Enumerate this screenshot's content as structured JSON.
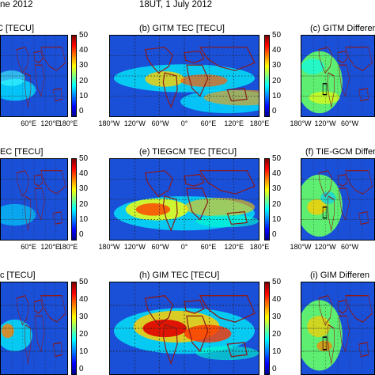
{
  "header": {
    "left": "ne 2012",
    "center": "18UT, 1 July 2012"
  },
  "colors": {
    "ocean": "#1a4fd8",
    "land_outline": "#8b1a1a",
    "dots": "#222222"
  },
  "chart_data": [
    {
      "type": "heatmap",
      "title": "C [TECU]",
      "colorbar_ticks": [
        "50",
        "40",
        "30",
        "20",
        "10",
        "0"
      ],
      "x_ticks": [
        "60°E",
        "120°E",
        "180°E"
      ]
    },
    {
      "type": "heatmap",
      "title": "(b) GITM TEC [TECU]",
      "colorbar_ticks": [
        "50",
        "40",
        "30",
        "20",
        "10",
        "0"
      ],
      "x_ticks": [
        "180°W",
        "120°W",
        "60°W",
        "0°",
        "60°E",
        "120°E",
        "180°E"
      ]
    },
    {
      "type": "heatmap",
      "title": "(c) GITM Differen",
      "x_ticks": [
        "180°W",
        "120°W",
        "60°W"
      ]
    },
    {
      "type": "heatmap",
      "title": "EC [TECU]",
      "colorbar_ticks": [
        "50",
        "40",
        "30",
        "20",
        "10",
        "0"
      ],
      "x_ticks": [
        "60°E",
        "120°E",
        "180°E"
      ]
    },
    {
      "type": "heatmap",
      "title": "(e) TIEGCM TEC [TECU]",
      "colorbar_ticks": [
        "50",
        "40",
        "30",
        "20",
        "10",
        "0"
      ],
      "x_ticks": [
        "180°W",
        "120°W",
        "60°W",
        "0°",
        "60°E",
        "120°E",
        "180°E"
      ]
    },
    {
      "type": "heatmap",
      "title": "(f) TIE-GCM Differ",
      "x_ticks": [
        "180°W",
        "120°W",
        "60°W"
      ]
    },
    {
      "type": "heatmap",
      "title": "c [TECU]",
      "colorbar_ticks": [
        "50",
        "40",
        "30",
        "20",
        "10",
        "0"
      ],
      "x_ticks": []
    },
    {
      "type": "heatmap",
      "title": "(h) GIM TEC [TECU]",
      "colorbar_ticks": [
        "50",
        "40",
        "30",
        "20",
        "10",
        "0"
      ],
      "x_ticks": []
    },
    {
      "type": "heatmap",
      "title": "(i) GIM Differen",
      "x_ticks": []
    }
  ]
}
